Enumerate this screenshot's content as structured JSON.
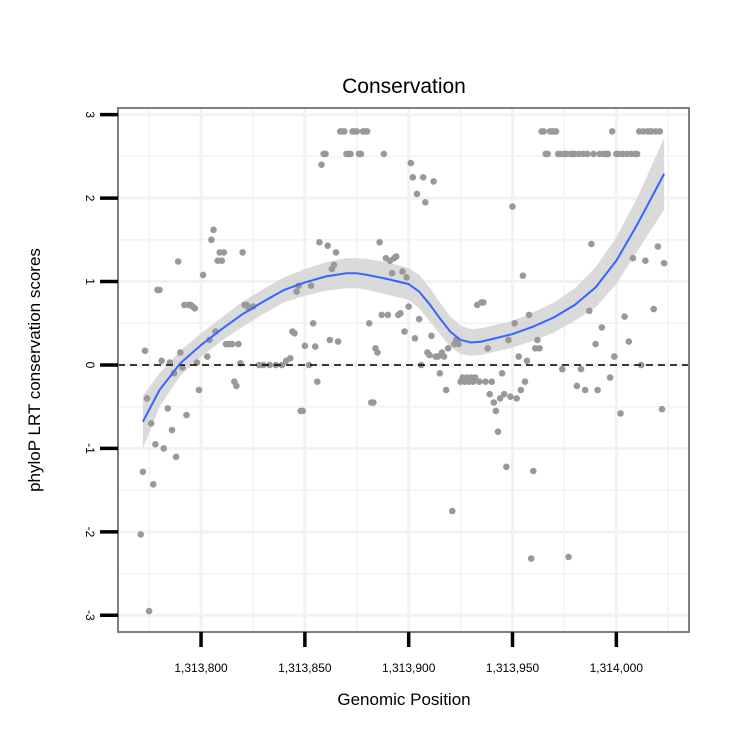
{
  "chart_data": {
    "type": "scatter",
    "title": "Conservation",
    "xlabel": "Genomic Position",
    "ylabel": "phyloP LRT conservation scores",
    "xlim": [
      1313760,
      1314035
    ],
    "ylim": [
      -3.2,
      3.08
    ],
    "x_ticks": [
      1313800,
      1313850,
      1313900,
      1313950,
      1314000
    ],
    "x_tick_labels": [
      "1,313,800",
      "1,313,850",
      "1,313,900",
      "1,313,950",
      "1,314,000"
    ],
    "y_ticks": [
      -3,
      -2,
      -1,
      0,
      1,
      2,
      3
    ],
    "y_tick_labels": [
      "-3",
      "-2",
      "-1",
      "0",
      "1",
      "2",
      "3"
    ],
    "reference_line": {
      "y": 0,
      "style": "dashed",
      "color": "#000000"
    },
    "grid": true,
    "colors": {
      "points": "#999999",
      "smooth_line": "#3366ff",
      "confidence_band": "#d3d3d3",
      "panel_border": "#7f7f7f",
      "grid": "#f2f2f2"
    },
    "series": [
      {
        "name": "phyloP scores",
        "type": "scatter",
        "points": [
          [
            1313771,
            -2.03
          ],
          [
            1313772,
            -1.28
          ],
          [
            1313773,
            0.17
          ],
          [
            1313774,
            -0.4
          ],
          [
            1313775,
            -2.95
          ],
          [
            1313776,
            -0.7
          ],
          [
            1313777,
            -1.43
          ],
          [
            1313778,
            -0.95
          ],
          [
            1313779,
            0.9
          ],
          [
            1313780,
            0.9
          ],
          [
            1313781,
            0.05
          ],
          [
            1313782,
            -1.0
          ],
          [
            1313784,
            -0.52
          ],
          [
            1313785,
            0.03
          ],
          [
            1313786,
            -0.78
          ],
          [
            1313787,
            -0.1
          ],
          [
            1313788,
            -1.1
          ],
          [
            1313789,
            1.24
          ],
          [
            1313790,
            0.15
          ],
          [
            1313791,
            -0.03
          ],
          [
            1313792,
            0.72
          ],
          [
            1313793,
            -0.6
          ],
          [
            1313794,
            0.72
          ],
          [
            1313795,
            0.72
          ],
          [
            1313796,
            0.7
          ],
          [
            1313797,
            0.68
          ],
          [
            1313798,
            0.03
          ],
          [
            1313799,
            -0.3
          ],
          [
            1313801,
            1.08
          ],
          [
            1313803,
            0.1
          ],
          [
            1313804,
            0.3
          ],
          [
            1313805,
            1.5
          ],
          [
            1313806,
            1.62
          ],
          [
            1313807,
            0.4
          ],
          [
            1313808,
            1.25
          ],
          [
            1313809,
            1.35
          ],
          [
            1313810,
            1.25
          ],
          [
            1313811,
            1.35
          ],
          [
            1313812,
            0.25
          ],
          [
            1313813,
            0.25
          ],
          [
            1313814,
            0.25
          ],
          [
            1313815,
            0.25
          ],
          [
            1313816,
            -0.2
          ],
          [
            1313817,
            -0.25
          ],
          [
            1313818,
            0.25
          ],
          [
            1313819,
            0.02
          ],
          [
            1313820,
            1.35
          ],
          [
            1313821,
            0.72
          ],
          [
            1313822,
            0.72
          ],
          [
            1313823,
            0.68
          ],
          [
            1313825,
            0.7
          ],
          [
            1313828,
            0.0
          ],
          [
            1313830,
            0.0
          ],
          [
            1313833,
            0.0
          ],
          [
            1313836,
            0.0
          ],
          [
            1313839,
            0.0
          ],
          [
            1313841,
            0.05
          ],
          [
            1313843,
            0.08
          ],
          [
            1313844,
            0.4
          ],
          [
            1313845,
            0.38
          ],
          [
            1313846,
            0.88
          ],
          [
            1313847,
            0.95
          ],
          [
            1313848,
            -0.55
          ],
          [
            1313849,
            -0.55
          ],
          [
            1313850,
            0.23
          ],
          [
            1313852,
            0.0
          ],
          [
            1313853,
            0.95
          ],
          [
            1313854,
            0.5
          ],
          [
            1313855,
            0.22
          ],
          [
            1313856,
            -0.2
          ],
          [
            1313857,
            1.47
          ],
          [
            1313858,
            2.4
          ],
          [
            1313859,
            2.53
          ],
          [
            1313860,
            2.53
          ],
          [
            1313861,
            1.43
          ],
          [
            1313862,
            0.3
          ],
          [
            1313863,
            1.15
          ],
          [
            1313864,
            1.2
          ],
          [
            1313865,
            1.35
          ],
          [
            1313866,
            0.28
          ],
          [
            1313867,
            2.8
          ],
          [
            1313868,
            2.8
          ],
          [
            1313869,
            2.8
          ],
          [
            1313870,
            2.53
          ],
          [
            1313871,
            2.53
          ],
          [
            1313872,
            2.53
          ],
          [
            1313873,
            2.8
          ],
          [
            1313874,
            2.8
          ],
          [
            1313875,
            2.8
          ],
          [
            1313876,
            2.53
          ],
          [
            1313877,
            2.53
          ],
          [
            1313878,
            2.8
          ],
          [
            1313879,
            2.8
          ],
          [
            1313880,
            2.8
          ],
          [
            1313881,
            0.5
          ],
          [
            1313882,
            -0.45
          ],
          [
            1313883,
            -0.45
          ],
          [
            1313884,
            0.2
          ],
          [
            1313885,
            0.15
          ],
          [
            1313886,
            1.47
          ],
          [
            1313887,
            0.6
          ],
          [
            1313888,
            2.53
          ],
          [
            1313889,
            1.28
          ],
          [
            1313890,
            0.6
          ],
          [
            1313891,
            1.25
          ],
          [
            1313892,
            1.1
          ],
          [
            1313893,
            1.28
          ],
          [
            1313894,
            1.3
          ],
          [
            1313895,
            0.6
          ],
          [
            1313896,
            0.62
          ],
          [
            1313897,
            1.12
          ],
          [
            1313898,
            0.4
          ],
          [
            1313899,
            1.05
          ],
          [
            1313900,
            0.7
          ],
          [
            1313901,
            2.42
          ],
          [
            1313902,
            2.25
          ],
          [
            1313903,
            0.32
          ],
          [
            1313904,
            2.05
          ],
          [
            1313905,
            0.55
          ],
          [
            1313906,
            0.0
          ],
          [
            1313907,
            2.25
          ],
          [
            1313908,
            1.95
          ],
          [
            1313909,
            0.15
          ],
          [
            1313910,
            0.12
          ],
          [
            1313911,
            0.35
          ],
          [
            1313912,
            2.2
          ],
          [
            1313913,
            0.1
          ],
          [
            1313914,
            0.1
          ],
          [
            1313915,
            -0.1
          ],
          [
            1313916,
            0.15
          ],
          [
            1313917,
            0.1
          ],
          [
            1313918,
            -0.3
          ],
          [
            1313919,
            0.2
          ],
          [
            1313921,
            -1.75
          ],
          [
            1313922,
            0.25
          ],
          [
            1313923,
            0.3
          ],
          [
            1313924,
            0.25
          ],
          [
            1313925,
            -0.2
          ],
          [
            1313926,
            -0.15
          ],
          [
            1313927,
            -0.2
          ],
          [
            1313928,
            -0.15
          ],
          [
            1313929,
            -0.2
          ],
          [
            1313930,
            -0.15
          ],
          [
            1313931,
            -0.2
          ],
          [
            1313932,
            -0.15
          ],
          [
            1313933,
            0.72
          ],
          [
            1313934,
            -0.2
          ],
          [
            1313935,
            0.75
          ],
          [
            1313936,
            0.75
          ],
          [
            1313937,
            -0.2
          ],
          [
            1313938,
            0.2
          ],
          [
            1313939,
            -0.35
          ],
          [
            1313940,
            -0.2
          ],
          [
            1313941,
            -0.45
          ],
          [
            1313942,
            -0.55
          ],
          [
            1313943,
            -0.8
          ],
          [
            1313944,
            -0.4
          ],
          [
            1313945,
            -0.1
          ],
          [
            1313946,
            -0.35
          ],
          [
            1313947,
            -1.22
          ],
          [
            1313948,
            0.3
          ],
          [
            1313949,
            -0.38
          ],
          [
            1313950,
            1.9
          ],
          [
            1313951,
            0.5
          ],
          [
            1313952,
            -0.4
          ],
          [
            1313953,
            0.1
          ],
          [
            1313954,
            -0.3
          ],
          [
            1313955,
            1.07
          ],
          [
            1313956,
            -0.2
          ],
          [
            1313957,
            0.05
          ],
          [
            1313958,
            0.6
          ],
          [
            1313959,
            -2.32
          ],
          [
            1313960,
            -1.27
          ],
          [
            1313961,
            0.2
          ],
          [
            1313962,
            0.3
          ],
          [
            1313963,
            0.2
          ],
          [
            1313964,
            2.8
          ],
          [
            1313965,
            2.8
          ],
          [
            1313966,
            2.53
          ],
          [
            1313967,
            2.53
          ],
          [
            1313968,
            2.8
          ],
          [
            1313969,
            2.8
          ],
          [
            1313970,
            2.8
          ],
          [
            1313971,
            2.8
          ],
          [
            1313972,
            2.53
          ],
          [
            1313973,
            2.53
          ],
          [
            1313974,
            -0.05
          ],
          [
            1313975,
            2.53
          ],
          [
            1313976,
            2.53
          ],
          [
            1313977,
            -2.3
          ],
          [
            1313978,
            2.53
          ],
          [
            1313979,
            2.53
          ],
          [
            1313980,
            2.53
          ],
          [
            1313981,
            -0.25
          ],
          [
            1313982,
            2.53
          ],
          [
            1313983,
            -0.05
          ],
          [
            1313984,
            2.53
          ],
          [
            1313985,
            -0.3
          ],
          [
            1313986,
            2.53
          ],
          [
            1313987,
            0.65
          ],
          [
            1313988,
            1.45
          ],
          [
            1313989,
            2.53
          ],
          [
            1313990,
            0.25
          ],
          [
            1313991,
            -0.3
          ],
          [
            1313992,
            2.53
          ],
          [
            1313993,
            0.45
          ],
          [
            1313994,
            2.53
          ],
          [
            1313995,
            2.53
          ],
          [
            1313996,
            2.53
          ],
          [
            1313997,
            -0.15
          ],
          [
            1313998,
            2.8
          ],
          [
            1313999,
            0.1
          ],
          [
            1314000,
            2.53
          ],
          [
            1314001,
            2.53
          ],
          [
            1314002,
            -0.58
          ],
          [
            1314003,
            2.53
          ],
          [
            1314004,
            0.58
          ],
          [
            1314005,
            2.53
          ],
          [
            1314006,
            0.28
          ],
          [
            1314007,
            2.53
          ],
          [
            1314008,
            1.28
          ],
          [
            1314009,
            2.53
          ],
          [
            1314010,
            2.53
          ],
          [
            1314011,
            2.8
          ],
          [
            1314012,
            0.0
          ],
          [
            1314013,
            2.8
          ],
          [
            1314014,
            1.25
          ],
          [
            1314015,
            2.8
          ],
          [
            1314016,
            2.8
          ],
          [
            1314017,
            2.8
          ],
          [
            1314018,
            0.67
          ],
          [
            1314019,
            2.8
          ],
          [
            1314020,
            1.42
          ],
          [
            1314021,
            2.8
          ],
          [
            1314022,
            -0.53
          ],
          [
            1314023,
            1.22
          ]
        ]
      },
      {
        "name": "loess smooth",
        "type": "line",
        "x": [
          1313772,
          1313780,
          1313790,
          1313800,
          1313810,
          1313820,
          1313830,
          1313840,
          1313850,
          1313860,
          1313870,
          1313875,
          1313880,
          1313890,
          1313900,
          1313905,
          1313910,
          1313915,
          1313920,
          1313925,
          1313930,
          1313935,
          1313940,
          1313950,
          1313960,
          1313970,
          1313980,
          1313990,
          1314000,
          1314010,
          1314023
        ],
        "y": [
          -0.68,
          -0.3,
          0.02,
          0.24,
          0.43,
          0.61,
          0.76,
          0.9,
          0.99,
          1.06,
          1.1,
          1.1,
          1.08,
          1.03,
          0.97,
          0.88,
          0.73,
          0.56,
          0.4,
          0.3,
          0.27,
          0.28,
          0.31,
          0.37,
          0.46,
          0.57,
          0.72,
          0.93,
          1.25,
          1.68,
          2.29
        ],
        "ci_upper": [
          -0.37,
          -0.1,
          0.17,
          0.38,
          0.57,
          0.76,
          0.91,
          1.05,
          1.15,
          1.23,
          1.28,
          1.28,
          1.27,
          1.23,
          1.16,
          1.08,
          0.93,
          0.75,
          0.58,
          0.47,
          0.43,
          0.44,
          0.47,
          0.53,
          0.63,
          0.75,
          0.92,
          1.17,
          1.53,
          2.0,
          2.72
        ],
        "ci_lower": [
          -1.0,
          -0.5,
          -0.13,
          0.1,
          0.29,
          0.46,
          0.61,
          0.75,
          0.83,
          0.89,
          0.92,
          0.92,
          0.9,
          0.84,
          0.78,
          0.68,
          0.53,
          0.37,
          0.22,
          0.13,
          0.11,
          0.12,
          0.15,
          0.21,
          0.29,
          0.39,
          0.53,
          0.69,
          0.97,
          1.36,
          1.86
        ]
      }
    ]
  }
}
